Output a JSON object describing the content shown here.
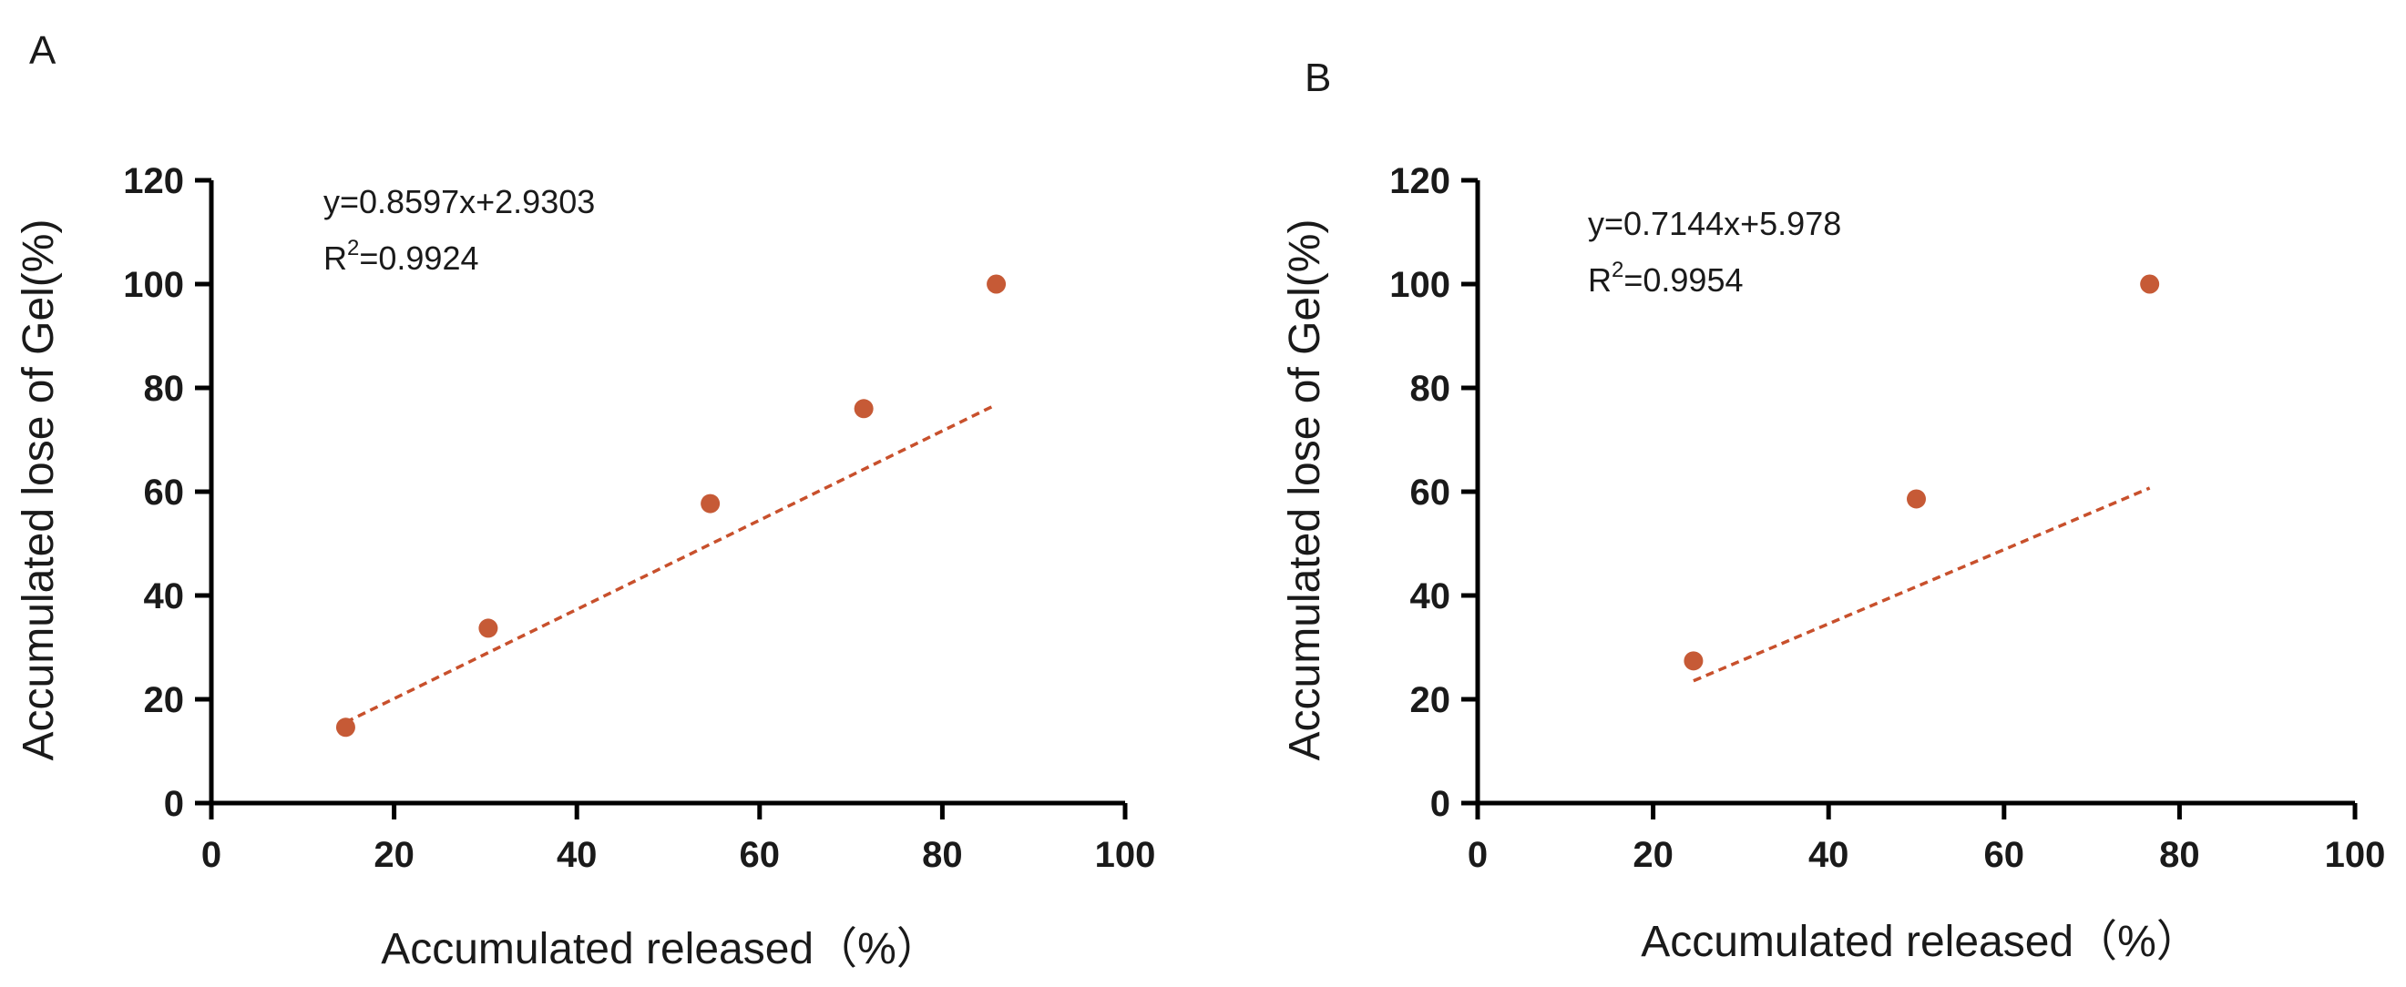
{
  "chart_data": [
    {
      "panel": "A",
      "type": "scatter",
      "xlabel": "Accumulated released（%）",
      "ylabel": "Accumulated lose of Gel(%)",
      "xlim": [
        0,
        100
      ],
      "ylim": [
        0,
        120
      ],
      "xticks": [
        0,
        20,
        40,
        60,
        80,
        100
      ],
      "yticks": [
        0,
        20,
        40,
        60,
        80,
        100,
        120
      ],
      "points": [
        {
          "x": 14.7,
          "y": 14.6
        },
        {
          "x": 30.3,
          "y": 33.7
        },
        {
          "x": 54.6,
          "y": 57.7
        },
        {
          "x": 71.4,
          "y": 76.0
        },
        {
          "x": 85.9,
          "y": 100.0
        }
      ],
      "fit": {
        "slope": 0.8597,
        "intercept": 2.9303,
        "x_range": [
          14.7,
          85.9
        ]
      },
      "equation": "y=0.8597x+2.9303",
      "r2_label": "R",
      "r2_sup": "2",
      "r2_value": "=0.9924",
      "color": "#c65a36"
    },
    {
      "panel": "B",
      "type": "scatter",
      "xlabel": "Accumulated released（%）",
      "ylabel": "Accumulated lose of Gel(%)",
      "xlim": [
        0,
        100
      ],
      "ylim": [
        0,
        120
      ],
      "xticks": [
        0,
        20,
        40,
        60,
        80,
        100
      ],
      "yticks": [
        0,
        20,
        40,
        60,
        80,
        100,
        120
      ],
      "points": [
        {
          "x": 24.6,
          "y": 27.4
        },
        {
          "x": 50.0,
          "y": 58.6
        },
        {
          "x": 76.6,
          "y": 100.0
        }
      ],
      "fit": {
        "slope": 0.7144,
        "intercept": 5.978,
        "x_range": [
          24.6,
          76.6
        ]
      },
      "equation": "y=0.7144x+5.978",
      "r2_label": "R",
      "r2_sup": "2",
      "r2_value": "=0.9954",
      "color": "#c65a36"
    }
  ]
}
